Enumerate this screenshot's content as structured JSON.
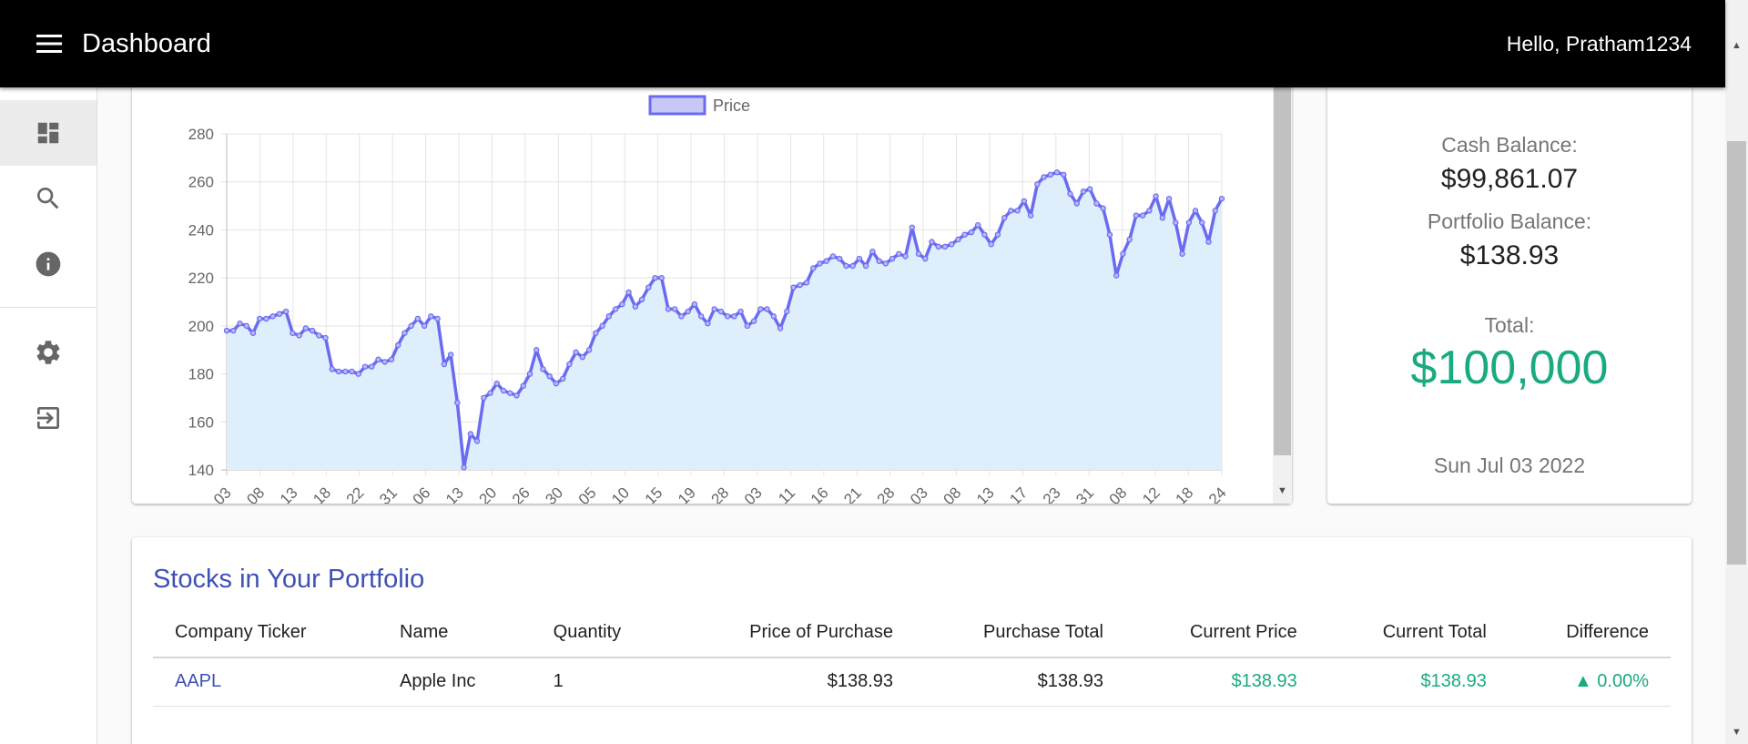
{
  "header": {
    "title": "Dashboard",
    "greeting": "Hello, Pratham1234"
  },
  "sidebar": {
    "items": [
      {
        "icon": "dashboard-icon",
        "active": true
      },
      {
        "icon": "search-icon"
      },
      {
        "icon": "info-icon"
      },
      {
        "icon": "gear-icon"
      },
      {
        "icon": "logout-icon"
      }
    ]
  },
  "balance": {
    "cash_label": "Cash Balance:",
    "cash_value": "$99,861.07",
    "portfolio_label": "Portfolio Balance:",
    "portfolio_value": "$138.93",
    "total_label": "Total:",
    "total_value": "$100,000",
    "date": "Sun Jul 03 2022"
  },
  "portfolio": {
    "title": "Stocks in Your Portfolio",
    "columns": [
      "Company Ticker",
      "Name",
      "Quantity",
      "Price of Purchase",
      "Purchase Total",
      "Current Price",
      "Current Total",
      "Difference"
    ],
    "rows": [
      {
        "ticker": "AAPL",
        "name": "Apple Inc",
        "quantity": "1",
        "price_of_purchase": "$138.93",
        "purchase_total": "$138.93",
        "current_price": "$138.93",
        "current_total": "$138.93",
        "difference": "▲ 0.00%"
      }
    ]
  },
  "colors": {
    "accent_green": "#1aaa82",
    "link_blue": "#3f51b5",
    "line": "#6b6bf2",
    "fill": "#deeefb"
  },
  "chart_data": {
    "type": "line",
    "legend": [
      "Price"
    ],
    "legend_position": "top",
    "grid": true,
    "ylim": [
      140,
      280
    ],
    "yticks": [
      140,
      160,
      180,
      200,
      220,
      240,
      260,
      280
    ],
    "xticks": [
      "03",
      "08",
      "13",
      "18",
      "22",
      "31",
      "06",
      "13",
      "20",
      "26",
      "30",
      "05",
      "10",
      "15",
      "19",
      "28",
      "03",
      "11",
      "16",
      "21",
      "28",
      "03",
      "08",
      "13",
      "17",
      "23",
      "31",
      "08",
      "12",
      "18",
      "24"
    ],
    "series": [
      {
        "name": "Price",
        "values": [
          198,
          198,
          201,
          200,
          197,
          203,
          203,
          204,
          205,
          206,
          197,
          196,
          199,
          198,
          196,
          195,
          182,
          181,
          181,
          181,
          180,
          183,
          183,
          186,
          185,
          186,
          192,
          197,
          200,
          203,
          200,
          204,
          203,
          184,
          188,
          168,
          141,
          155,
          152,
          170,
          172,
          176,
          173,
          172,
          171,
          175,
          180,
          190,
          182,
          179,
          176,
          178,
          184,
          189,
          187,
          190,
          197,
          200,
          204,
          207,
          209,
          214,
          208,
          211,
          216,
          220,
          220,
          207,
          207,
          204,
          206,
          209,
          204,
          201,
          207,
          206,
          204,
          204,
          206,
          200,
          202,
          207,
          207,
          204,
          199,
          206,
          216,
          217,
          218,
          224,
          226,
          227,
          229,
          228,
          225,
          225,
          228,
          225,
          231,
          227,
          226,
          228,
          230,
          229,
          241,
          230,
          228,
          235,
          233,
          233,
          234,
          236,
          238,
          239,
          242,
          238,
          234,
          238,
          245,
          248,
          248,
          252,
          246,
          259,
          262,
          263,
          264,
          263,
          255,
          251,
          256,
          257,
          251,
          249,
          238,
          221,
          230,
          236,
          246,
          246,
          248,
          254,
          245,
          253,
          243,
          230,
          243,
          248,
          243,
          235,
          248,
          253
        ]
      }
    ]
  }
}
